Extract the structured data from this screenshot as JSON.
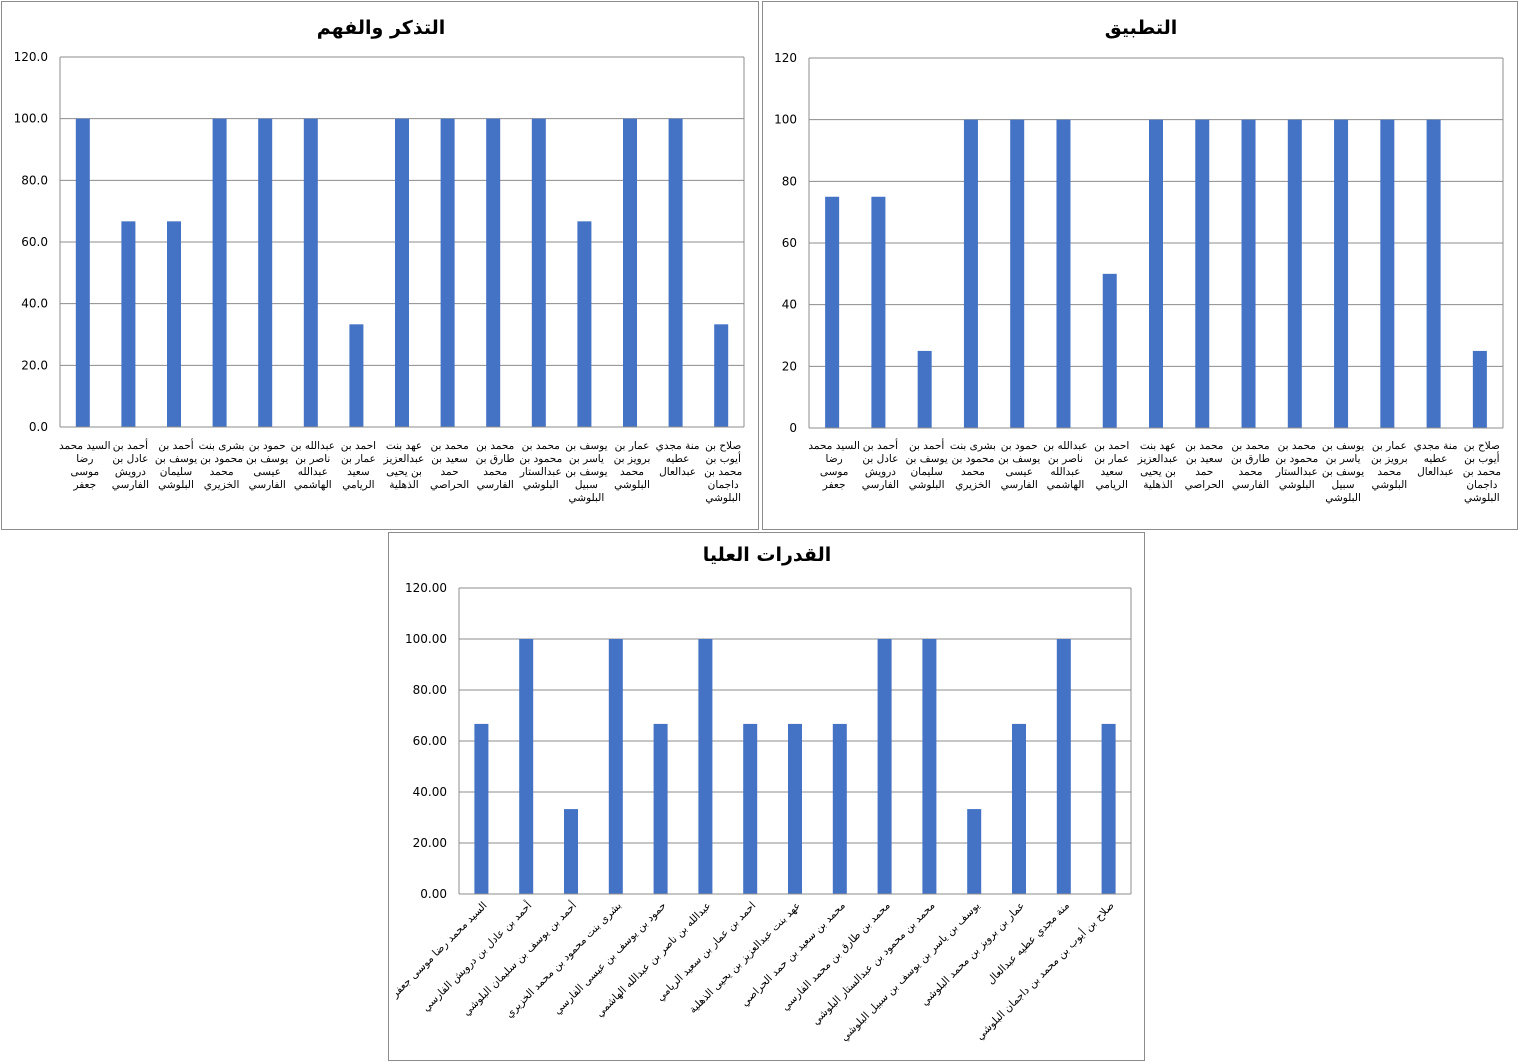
{
  "chart_data": [
    {
      "type": "bar",
      "title": "التذكر والفهم",
      "ylim": [
        0,
        120
      ],
      "ytick_labels": [
        "0.0",
        "20.0",
        "40.0",
        "60.0",
        "80.0",
        "100.0",
        "120.0"
      ],
      "grid": true,
      "legend": "none",
      "bar_color": "#4472c4",
      "categories": [
        [
          "السيد محمد",
          "رضا",
          "موسى",
          "جعفر"
        ],
        [
          "أحمد بن",
          "عادل بن",
          "درويش",
          "الفارسي"
        ],
        [
          "أحمد بن",
          "يوسف بن",
          "سليمان",
          "البلوشي"
        ],
        [
          "بشرى بنت",
          "محمود بن",
          "محمد",
          "الخزيري"
        ],
        [
          "حمود بن",
          "يوسف بن",
          "عيسى",
          "الفارسي"
        ],
        [
          "عبدالله بن",
          "ناصر بن",
          "عبدالله",
          "الهاشمي"
        ],
        [
          "احمد بن",
          "عمار بن",
          "سعيد",
          "الريامي"
        ],
        [
          "عهد بنت",
          "عبدالعزيز",
          "بن يحيى",
          "الذهلية"
        ],
        [
          "محمد بن",
          "سعيد بن",
          "حمد",
          "الحراصي"
        ],
        [
          "محمد بن",
          "طارق بن",
          "محمد",
          "الفارسي"
        ],
        [
          "محمد بن",
          "محمود بن",
          "عبدالستار",
          "البلوشي"
        ],
        [
          "يوسف بن",
          "ياسر بن",
          "يوسف بن",
          "سبيل",
          "البلوشي"
        ],
        [
          "عمار بن",
          "برويز بن",
          "محمد",
          "البلوشي"
        ],
        [
          "منة مجدي",
          "عطيه",
          "عبدالعال"
        ],
        [
          "صلاح بن",
          "أيوب بن",
          "محمد بن",
          "داجمان",
          "البلوشي"
        ]
      ],
      "values": [
        100,
        66.7,
        66.7,
        100,
        100,
        100,
        33.3,
        100,
        100,
        100,
        100,
        66.7,
        100,
        100,
        33.3
      ]
    },
    {
      "type": "bar",
      "title": "التطبيق",
      "ylim": [
        0,
        120
      ],
      "ytick_labels": [
        "0",
        "20",
        "40",
        "60",
        "80",
        "100",
        "120"
      ],
      "grid": true,
      "legend": "none",
      "bar_color": "#4472c4",
      "categories": [
        [
          "السيد محمد",
          "رضا",
          "موسى",
          "جعفر"
        ],
        [
          "أحمد بن",
          "عادل بن",
          "درويش",
          "الفارسي"
        ],
        [
          "أحمد بن",
          "يوسف بن",
          "سليمان",
          "البلوشي"
        ],
        [
          "بشرى بنت",
          "محمود بن",
          "محمد",
          "الخزيري"
        ],
        [
          "حمود بن",
          "يوسف بن",
          "عيسى",
          "الفارسي"
        ],
        [
          "عبدالله بن",
          "ناصر بن",
          "عبدالله",
          "الهاشمي"
        ],
        [
          "احمد بن",
          "عمار بن",
          "سعيد",
          "الريامي"
        ],
        [
          "عهد بنت",
          "عبدالعزيز",
          "بن يحيى",
          "الذهلية"
        ],
        [
          "محمد بن",
          "سعيد بن",
          "حمد",
          "الحراصي"
        ],
        [
          "محمد بن",
          "طارق بن",
          "محمد",
          "الفارسي"
        ],
        [
          "محمد بن",
          "محمود بن",
          "عبدالستار",
          "البلوشي"
        ],
        [
          "يوسف بن",
          "ياسر بن",
          "يوسف بن",
          "سبيل",
          "البلوشي"
        ],
        [
          "عمار بن",
          "برويز بن",
          "محمد",
          "البلوشي"
        ],
        [
          "منة مجدي",
          "عطيه",
          "عبدالعال"
        ],
        [
          "صلاح بن",
          "أيوب بن",
          "محمد بن",
          "داجمان",
          "البلوشي"
        ]
      ],
      "values": [
        75,
        75,
        25,
        100,
        100,
        100,
        50,
        100,
        100,
        100,
        100,
        100,
        100,
        100,
        25
      ]
    },
    {
      "type": "bar",
      "title": "القدرات العليا",
      "ylim": [
        0,
        120
      ],
      "ytick_labels": [
        "0.00",
        "20.00",
        "40.00",
        "60.00",
        "80.00",
        "100.00",
        "120.00"
      ],
      "grid": true,
      "legend": "none",
      "bar_color": "#4472c4",
      "categories": [
        "السيد محمد رضا موسى جعفر",
        "أحمد بن عادل بن درويش الفارسي",
        "أحمد بن يوسف بن سليمان البلوشي",
        "بشرى بنت محمود بن محمد الخزيري",
        "حمود بن يوسف بن عيسى الفارسي",
        "عبدالله بن ناصر بن عبدالله الهاشمي",
        "احمد بن عمار بن سعيد الريامي",
        "عهد بنت عبدالعزيز بن يحيى الذهلية",
        "محمد بن سعيد بن حمد الحراصي",
        "محمد بن طارق بن محمد الفارسي",
        "محمد بن محمود بن عبدالستار البلوشي",
        "يوسف بن ياسر بن يوسف بن سبيل البلوشي",
        "عمار بن برويز بن محمد البلوشي",
        "منة مجدي عطيه عبدالعال",
        "صلاح بن أيوب بن محمد بن داجمان البلوشي"
      ],
      "values": [
        66.7,
        100,
        33.3,
        100,
        66.7,
        100,
        66.7,
        66.7,
        66.7,
        100,
        100,
        33.3,
        66.7,
        100,
        66.7
      ]
    }
  ]
}
